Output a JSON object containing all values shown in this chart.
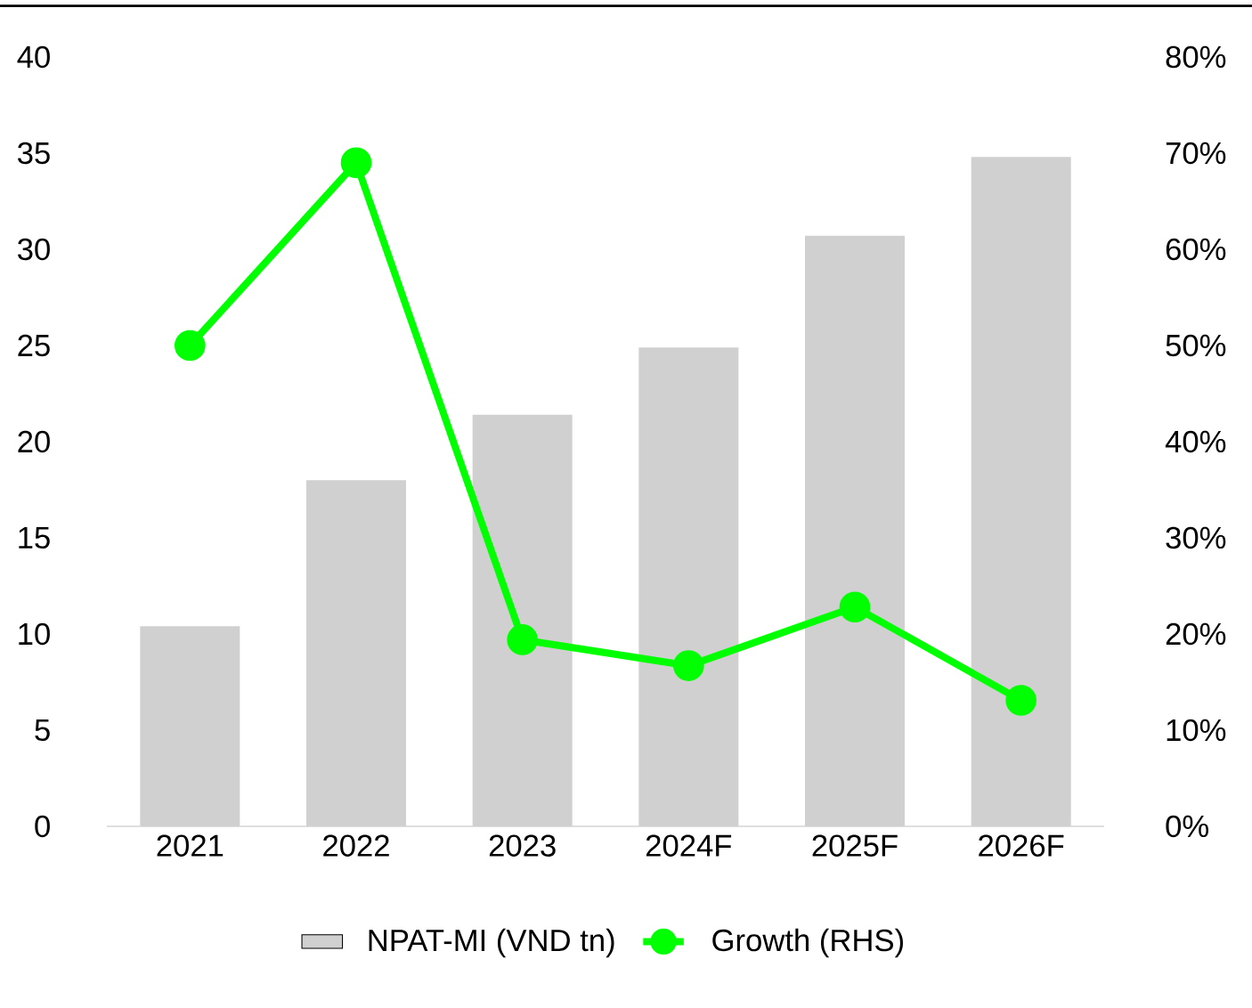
{
  "chart_data": {
    "type": "bar",
    "categories": [
      "2021",
      "2022",
      "2023",
      "2024F",
      "2025F",
      "2026F"
    ],
    "series": [
      {
        "name": "NPAT-MI (VND tn)",
        "color": "#d0d0d0",
        "values": [
          10.4,
          18.0,
          21.4,
          24.9,
          30.7,
          34.8
        ]
      },
      {
        "name": "Growth (RHS)",
        "type": "line",
        "axis": "y2",
        "color": "#00ff00",
        "values": [
          50,
          69,
          19.4,
          16.7,
          22.8,
          13.1
        ]
      }
    ],
    "ylim": [
      0,
      40
    ],
    "yticks": [
      0,
      5,
      10,
      15,
      20,
      25,
      30,
      35,
      40
    ],
    "y2lim": [
      0,
      80
    ],
    "y2ticks": [
      {
        "value": 0,
        "label": "0%"
      },
      {
        "value": 10,
        "label": "10%"
      },
      {
        "value": 20,
        "label": "20%"
      },
      {
        "value": 30,
        "label": "30%"
      },
      {
        "value": 40,
        "label": "40%"
      },
      {
        "value": 50,
        "label": "50%"
      },
      {
        "value": 60,
        "label": "60%"
      },
      {
        "value": 70,
        "label": "70%"
      },
      {
        "value": 80,
        "label": "80%"
      }
    ],
    "grid": false,
    "legend": "bottom",
    "marker": "circle",
    "line_style": "solid"
  }
}
